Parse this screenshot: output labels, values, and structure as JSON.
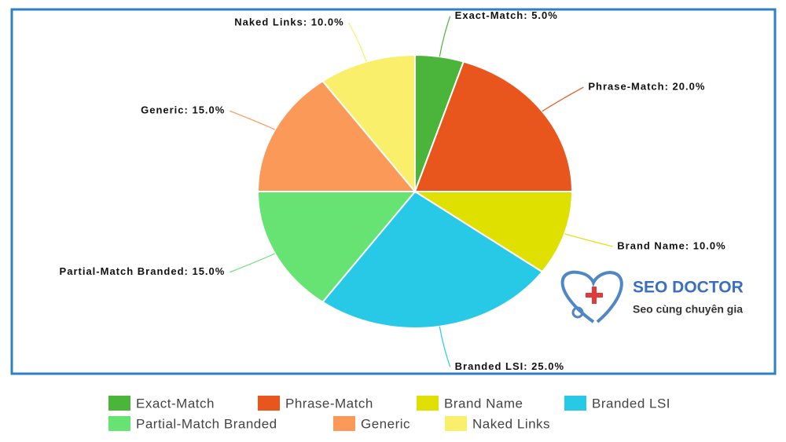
{
  "chart_data": {
    "type": "pie",
    "categories": [
      "Exact-Match",
      "Phrase-Match",
      "Brand Name",
      "Branded LSI",
      "Partial-Match Branded",
      "Generic",
      "Naked Links"
    ],
    "values": [
      5,
      20,
      10,
      25,
      15,
      15,
      10
    ],
    "value_labels": [
      "Exact-Match: 5.0%",
      "Phrase-Match: 20.0%",
      "Brand Name: 10.0%",
      "Branded LSI: 25.0%",
      "Partial-Match Branded: 15.0%",
      "Generic: 15.0%",
      "Naked Links: 10.0%"
    ],
    "colors": [
      "#4bb43a",
      "#e8561e",
      "#dfe000",
      "#28c9e6",
      "#67e373",
      "#fb9a58",
      "#f9ef6a"
    ],
    "legend": "bottom"
  },
  "logo": {
    "name": "SEO DOCTOR",
    "tagline": "Seo cùng chuyên gia"
  }
}
